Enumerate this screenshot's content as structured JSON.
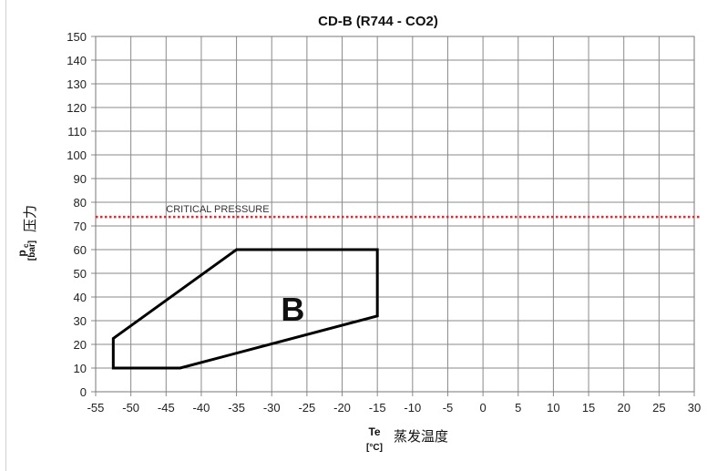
{
  "chart_data": {
    "type": "line",
    "title": "CD-B (R744 - CO2)",
    "x_axis": {
      "symbol": "Te",
      "unit": "[°C]",
      "label_cn": "蒸发温度",
      "range": [
        -55,
        30
      ],
      "ticks": [
        -55,
        -50,
        -45,
        -40,
        -35,
        -30,
        -25,
        -20,
        -15,
        -10,
        -5,
        0,
        5,
        10,
        15,
        20,
        25,
        30
      ]
    },
    "y_axis": {
      "symbol": "p",
      "subscript": "c",
      "unit": "[bar]",
      "label_cn": "压力",
      "range": [
        0,
        150
      ],
      "ticks": [
        0,
        10,
        20,
        30,
        40,
        50,
        60,
        70,
        80,
        90,
        100,
        110,
        120,
        130,
        140,
        150
      ]
    },
    "grid": true,
    "critical_pressure": {
      "label": "CRITICAL PRESSURE",
      "value": 73.8,
      "color": "#e8262d"
    },
    "region": {
      "label": "B",
      "color": "#000000",
      "points": [
        {
          "x": -52.5,
          "y": 10
        },
        {
          "x": -43,
          "y": 10
        },
        {
          "x": -15,
          "y": 32
        },
        {
          "x": -15,
          "y": 60
        },
        {
          "x": -35,
          "y": 60
        },
        {
          "x": -52.5,
          "y": 22.5
        }
      ],
      "label_at": {
        "x": -27,
        "y": 35
      }
    }
  }
}
